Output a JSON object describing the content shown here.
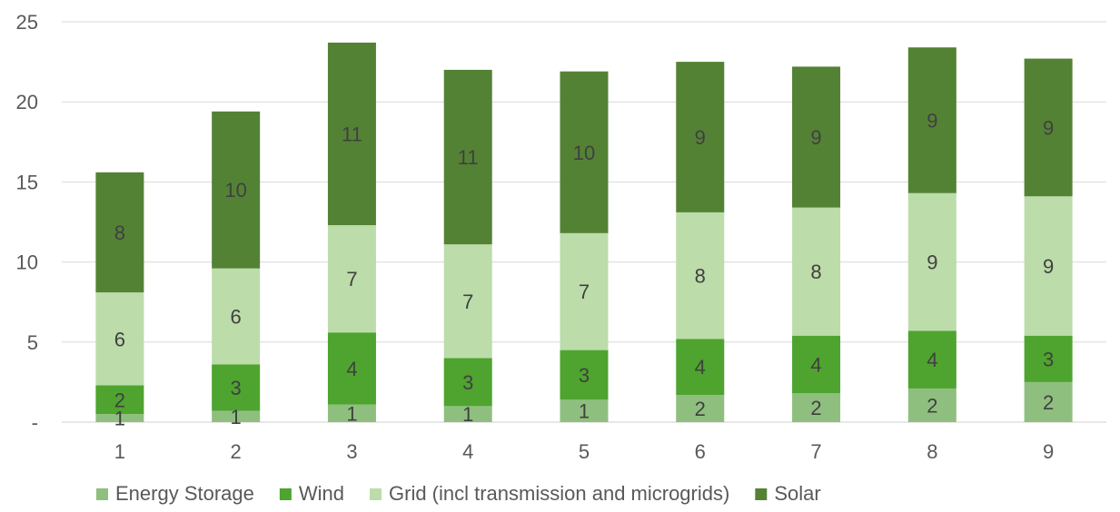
{
  "chart_data": {
    "type": "bar",
    "stacked": true,
    "categories": [
      "1",
      "2",
      "3",
      "4",
      "5",
      "6",
      "7",
      "8",
      "9"
    ],
    "series": [
      {
        "name": "Energy Storage",
        "color": "#8fbf7f",
        "values": [
          0.5,
          0.7,
          1.1,
          1.0,
          1.4,
          1.7,
          1.8,
          2.1,
          2.5
        ],
        "labels": [
          "1",
          "1",
          "1",
          "1",
          "1",
          "2",
          "2",
          "2",
          "2"
        ]
      },
      {
        "name": "Wind",
        "color": "#4ea42e",
        "values": [
          1.8,
          2.9,
          4.5,
          3.0,
          3.1,
          3.5,
          3.6,
          3.6,
          2.9
        ],
        "labels": [
          "2",
          "3",
          "4",
          "3",
          "3",
          "4",
          "4",
          "4",
          "3"
        ]
      },
      {
        "name": "Grid (incl transmission and microgrids)",
        "color": "#bcdcaa",
        "values": [
          5.8,
          6.0,
          6.7,
          7.1,
          7.3,
          7.9,
          8.0,
          8.6,
          8.7
        ],
        "labels": [
          "6",
          "6",
          "7",
          "7",
          "7",
          "8",
          "8",
          "9",
          "9"
        ]
      },
      {
        "name": "Solar",
        "color": "#548235",
        "values": [
          7.5,
          9.8,
          11.4,
          10.9,
          10.1,
          9.4,
          8.8,
          9.1,
          8.6
        ],
        "labels": [
          "8",
          "10",
          "11",
          "11",
          "10",
          "9",
          "9",
          "9",
          "9"
        ]
      }
    ],
    "yticks": [
      "-",
      "5",
      "10",
      "15",
      "20",
      "25"
    ],
    "ylim": [
      0,
      25
    ],
    "grid": true,
    "legend_position": "bottom",
    "title": "",
    "xlabel": "",
    "ylabel": ""
  }
}
